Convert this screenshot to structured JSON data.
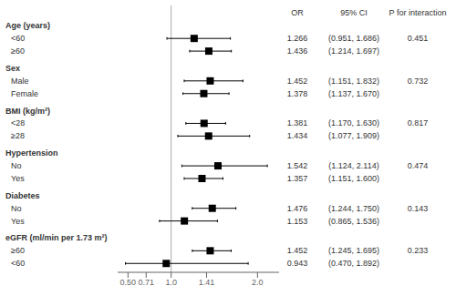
{
  "chart_data": {
    "type": "forest",
    "columns": {
      "value": "OR",
      "ci": "95% CI",
      "p": "P for interaction"
    },
    "groups": [
      {
        "name": "Age (years)",
        "rows": [
          {
            "label": "<60",
            "value": 1.266,
            "ci_low": 0.951,
            "ci_high": 1.686,
            "value_label": "1.266",
            "ci_label": "(0.951, 1.686)",
            "p_interaction": 0.451
          },
          {
            "label": "≥60",
            "value": 1.436,
            "ci_low": 1.214,
            "ci_high": 1.697,
            "value_label": "1.436",
            "ci_label": "(1.214, 1.697)"
          }
        ]
      },
      {
        "name": "Sex",
        "rows": [
          {
            "label": "Male",
            "value": 1.452,
            "ci_low": 1.151,
            "ci_high": 1.832,
            "value_label": "1.452",
            "ci_label": "(1.151, 1.832)",
            "p_interaction": 0.732
          },
          {
            "label": "Female",
            "value": 1.378,
            "ci_low": 1.137,
            "ci_high": 1.67,
            "value_label": "1.378",
            "ci_label": "(1.137, 1.670)"
          }
        ]
      },
      {
        "name": "BMI (kg/m²)",
        "rows": [
          {
            "label": "<28",
            "value": 1.381,
            "ci_low": 1.17,
            "ci_high": 1.63,
            "value_label": "1.381",
            "ci_label": "(1.170, 1.630)",
            "p_interaction": 0.817
          },
          {
            "label": "≥28",
            "value": 1.434,
            "ci_low": 1.077,
            "ci_high": 1.909,
            "value_label": "1.434",
            "ci_label": "(1.077, 1.909)"
          }
        ]
      },
      {
        "name": "Hypertension",
        "rows": [
          {
            "label": "No",
            "value": 1.542,
            "ci_low": 1.124,
            "ci_high": 2.114,
            "value_label": "1.542",
            "ci_label": "(1.124, 2.114)",
            "p_interaction": 0.474
          },
          {
            "label": "Yes",
            "value": 1.357,
            "ci_low": 1.151,
            "ci_high": 1.6,
            "value_label": "1.357",
            "ci_label": "(1.151, 1.600)"
          }
        ]
      },
      {
        "name": "Diabetes",
        "rows": [
          {
            "label": "No",
            "value": 1.476,
            "ci_low": 1.244,
            "ci_high": 1.75,
            "value_label": "1.476",
            "ci_label": "(1.244, 1.750)",
            "p_interaction": 0.143
          },
          {
            "label": "Yes",
            "value": 1.153,
            "ci_low": 0.865,
            "ci_high": 1.536,
            "value_label": "1.153",
            "ci_label": "(0.865, 1.536)"
          }
        ]
      },
      {
        "name": "eGFR (ml/min per 1.73 m²)",
        "rows": [
          {
            "label": "≥60",
            "value": 1.452,
            "ci_low": 1.245,
            "ci_high": 1.695,
            "value_label": "1.452",
            "ci_label": "(1.245, 1.695)",
            "p_interaction": 0.233
          },
          {
            "label": "<60",
            "value": 0.943,
            "ci_low": 0.47,
            "ci_high": 1.892,
            "value_label": "0.943",
            "ci_label": "(0.470, 1.892)"
          }
        ]
      }
    ],
    "xlim": [
      0.38,
      2.25
    ],
    "xticks": [
      {
        "value": 0.5,
        "label": "0.50"
      },
      0.71,
      {
        "value": 1,
        "label": "1.0"
      },
      1.41,
      {
        "value": 2,
        "label": "2.0"
      }
    ],
    "reference_line": {
      "x": 1,
      "color": "#aaaaaa"
    },
    "color": "#000000",
    "marker": "square",
    "grid": false
  }
}
